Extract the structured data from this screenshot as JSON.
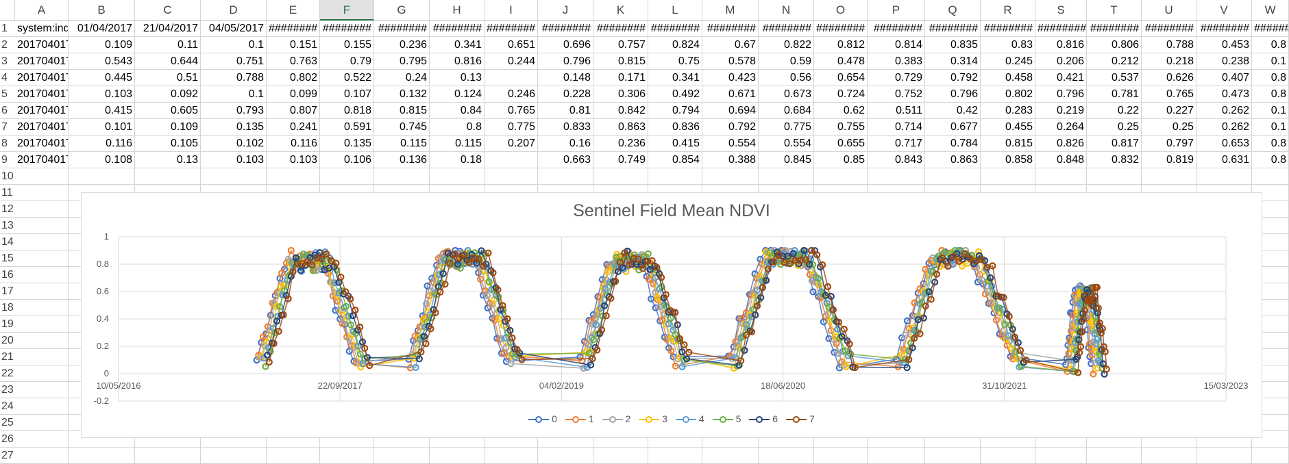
{
  "columns": [
    "A",
    "B",
    "C",
    "D",
    "E",
    "F",
    "G",
    "H",
    "I",
    "J",
    "K",
    "L",
    "M",
    "N",
    "O",
    "P",
    "Q",
    "R",
    "S",
    "T",
    "U",
    "V",
    "W"
  ],
  "selected_column": "F",
  "rows": [
    "1",
    "2",
    "3",
    "4",
    "5",
    "6",
    "7",
    "8",
    "9",
    "10",
    "11",
    "12",
    "13",
    "14",
    "15",
    "16",
    "17",
    "18",
    "19",
    "20",
    "21",
    "22",
    "23",
    "24",
    "25",
    "26",
    "27"
  ],
  "grid": [
    [
      "system:ind",
      "01/04/2017",
      "21/04/2017",
      "04/05/2017",
      "########",
      "########",
      "########",
      "########",
      "########",
      "########",
      "########",
      "########",
      "########",
      "########",
      "########",
      "########",
      "########",
      "########",
      "########",
      "########",
      "########",
      "########",
      "########"
    ],
    [
      "20170401T",
      "0.109",
      "0.11",
      "0.1",
      "0.151",
      "0.155",
      "0.236",
      "0.341",
      "0.651",
      "0.696",
      "0.757",
      "0.824",
      "0.67",
      "0.822",
      "0.812",
      "0.814",
      "0.835",
      "0.83",
      "0.816",
      "0.806",
      "0.788",
      "0.453",
      "0.8"
    ],
    [
      "20170401T",
      "0.543",
      "0.644",
      "0.751",
      "0.763",
      "0.79",
      "0.795",
      "0.816",
      "0.244",
      "0.796",
      "0.815",
      "0.75",
      "0.578",
      "0.59",
      "0.478",
      "0.383",
      "0.314",
      "0.245",
      "0.206",
      "0.212",
      "0.218",
      "0.238",
      "0.1"
    ],
    [
      "20170401T",
      "0.445",
      "0.51",
      "0.788",
      "0.802",
      "0.522",
      "0.24",
      "0.13",
      "",
      "0.148",
      "0.171",
      "0.341",
      "0.423",
      "0.56",
      "0.654",
      "0.729",
      "0.792",
      "0.458",
      "0.421",
      "0.537",
      "0.626",
      "0.407",
      "0.8"
    ],
    [
      "20170401T",
      "0.103",
      "0.092",
      "0.1",
      "0.099",
      "0.107",
      "0.132",
      "0.124",
      "0.246",
      "0.228",
      "0.306",
      "0.492",
      "0.671",
      "0.673",
      "0.724",
      "0.752",
      "0.796",
      "0.802",
      "0.796",
      "0.781",
      "0.765",
      "0.473",
      "0.8"
    ],
    [
      "20170401T",
      "0.415",
      "0.605",
      "0.793",
      "0.807",
      "0.818",
      "0.815",
      "0.84",
      "0.765",
      "0.81",
      "0.842",
      "0.794",
      "0.694",
      "0.684",
      "0.62",
      "0.511",
      "0.42",
      "0.283",
      "0.219",
      "0.22",
      "0.227",
      "0.262",
      "0.1"
    ],
    [
      "20170401T",
      "0.101",
      "0.109",
      "0.135",
      "0.241",
      "0.591",
      "0.745",
      "0.8",
      "0.775",
      "0.833",
      "0.863",
      "0.836",
      "0.792",
      "0.775",
      "0.755",
      "0.714",
      "0.677",
      "0.455",
      "0.264",
      "0.25",
      "0.25",
      "0.262",
      "0.1"
    ],
    [
      "20170401T",
      "0.116",
      "0.105",
      "0.102",
      "0.116",
      "0.135",
      "0.115",
      "0.115",
      "0.207",
      "0.16",
      "0.236",
      "0.415",
      "0.554",
      "0.554",
      "0.655",
      "0.717",
      "0.784",
      "0.815",
      "0.826",
      "0.817",
      "0.797",
      "0.653",
      "0.8"
    ],
    [
      "20170401T",
      "0.108",
      "0.13",
      "0.103",
      "0.103",
      "0.106",
      "0.136",
      "0.18",
      "",
      "0.663",
      "0.749",
      "0.854",
      "0.388",
      "0.845",
      "0.85",
      "0.843",
      "0.863",
      "0.858",
      "0.848",
      "0.832",
      "0.819",
      "0.631",
      "0.8"
    ]
  ],
  "chart_data": {
    "type": "line",
    "title": "Sentinel Field Mean NDVI",
    "xlabel": "",
    "ylabel": "",
    "x_ticks": [
      "10/05/2016",
      "22/09/2017",
      "04/02/2019",
      "18/06/2020",
      "31/10/2021",
      "15/03/2023"
    ],
    "y_ticks": [
      "1",
      "0.8",
      "0.6",
      "0.4",
      "0.2",
      "0",
      "-0.2"
    ],
    "xlim": [
      "10/05/2016",
      "15/03/2023"
    ],
    "ylim": [
      -0.2,
      1
    ],
    "grid": "major gridlines on both axes",
    "legend_position": "bottom",
    "series": [
      {
        "name": "0",
        "color": "#4472c4"
      },
      {
        "name": "1",
        "color": "#ed7d31"
      },
      {
        "name": "2",
        "color": "#a5a5a5"
      },
      {
        "name": "3",
        "color": "#ffc000"
      },
      {
        "name": "4",
        "color": "#5b9bd5"
      },
      {
        "name": "5",
        "color": "#70ad47"
      },
      {
        "name": "6",
        "color": "#264478"
      },
      {
        "name": "7",
        "color": "#9e480e"
      }
    ],
    "season_peaks": [
      {
        "rise_start": "01/04/2017",
        "peak": 0.85,
        "fall_end": "10/11/2017",
        "base": 0.1
      },
      {
        "rise_start": "10/03/2018",
        "peak": 0.86,
        "fall_end": "20/10/2018",
        "base": 0.1
      },
      {
        "rise_start": "01/04/2019",
        "peak": 0.84,
        "fall_end": "01/11/2019",
        "base": 0.1
      },
      {
        "rise_start": "01/03/2020",
        "peak": 0.88,
        "fall_end": "10/11/2020",
        "base": 0.1
      },
      {
        "rise_start": "15/03/2021",
        "peak": 0.87,
        "fall_end": "01/12/2021",
        "base": 0.1
      },
      {
        "rise_start": "01/04/2022",
        "peak": 0.6,
        "fall_end": "01/06/2022",
        "base": 0.05
      }
    ]
  }
}
